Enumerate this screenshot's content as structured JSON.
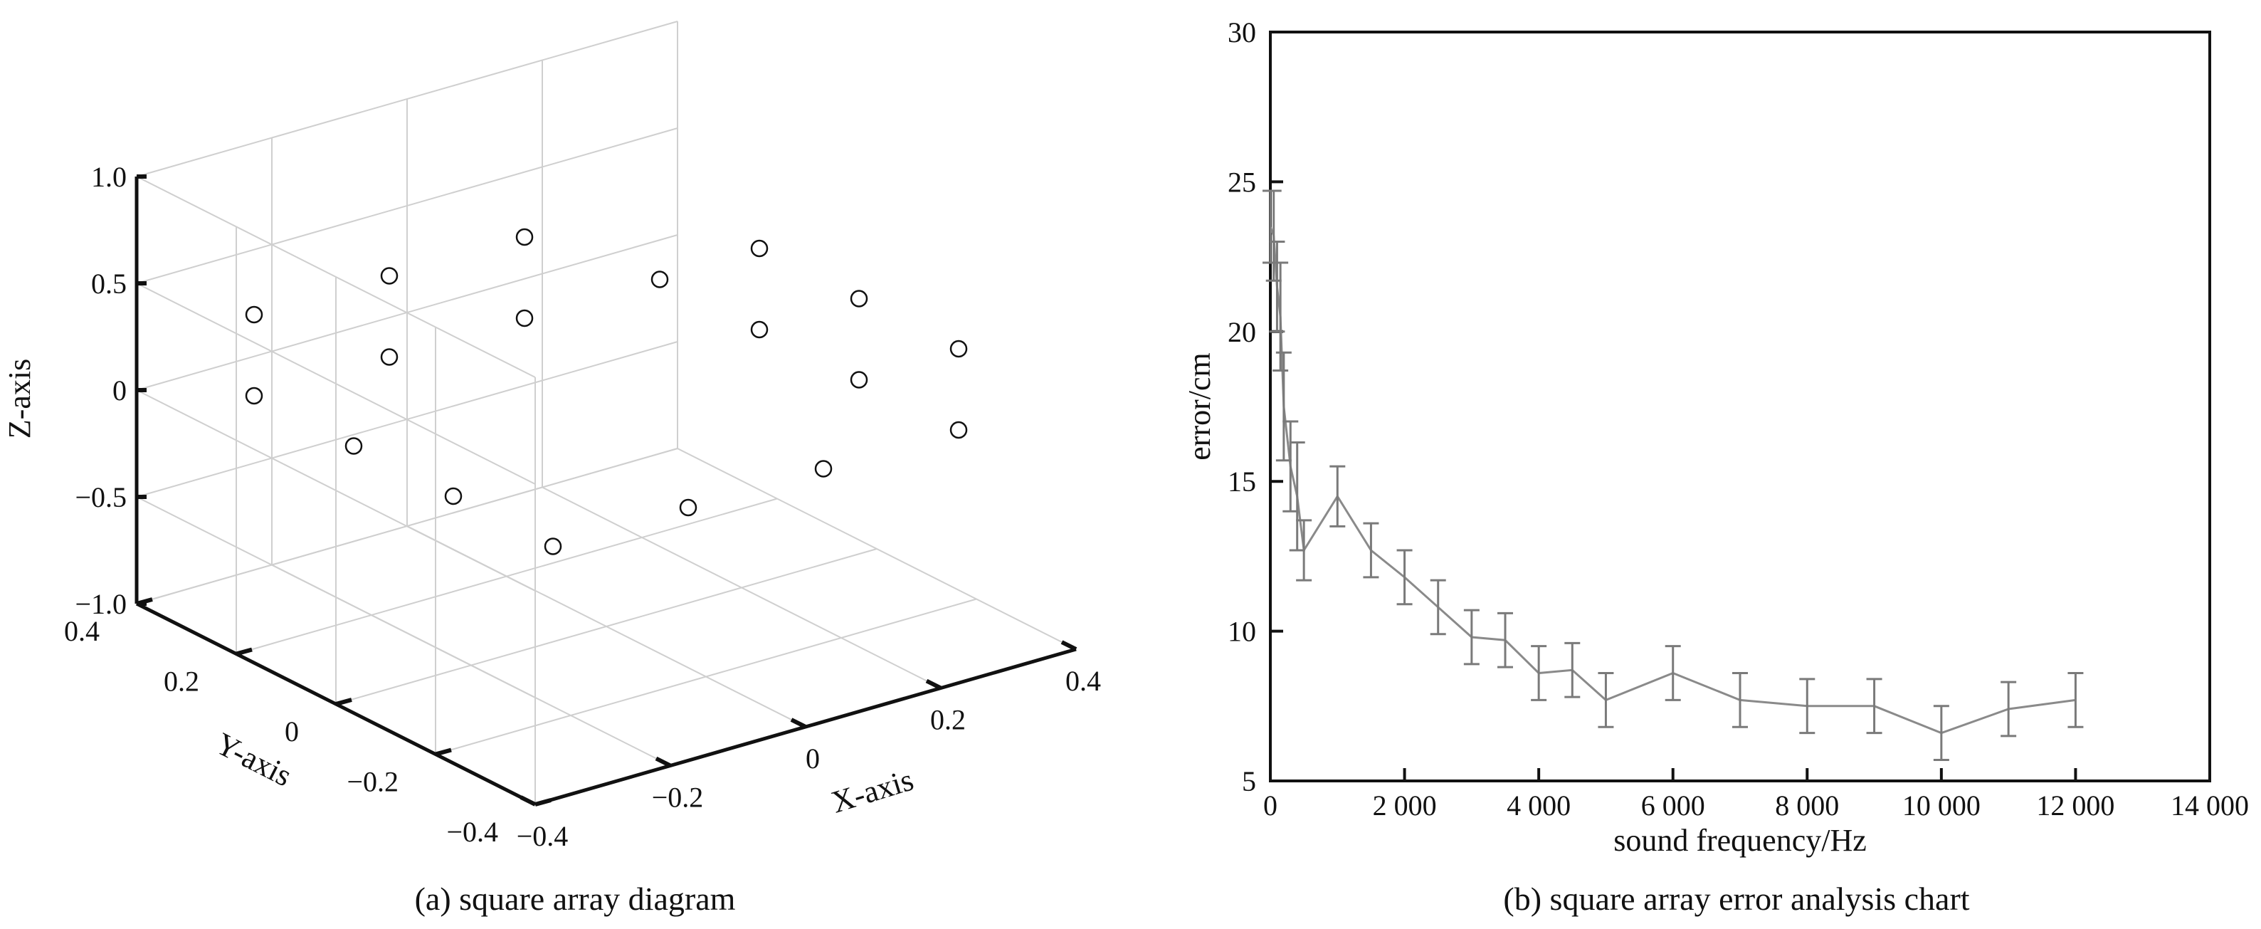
{
  "chart_data": [
    {
      "type": "scatter",
      "subtype": "3d",
      "caption": "(a) square array diagram",
      "xlabel": "X-axis",
      "ylabel": "Y-axis",
      "zlabel": "Z-axis",
      "xlim": [
        -0.4,
        0.4
      ],
      "ylim": [
        -0.4,
        0.4
      ],
      "zlim": [
        -1.0,
        1.0
      ],
      "xticks": [
        "−0.4",
        "−0.2",
        "0",
        "0.2",
        "0.4"
      ],
      "yticks": [
        "−0.4",
        "−0.2",
        "0",
        "0.2",
        "0.4"
      ],
      "zticks": [
        "−1.0",
        "−0.5",
        "0",
        "0.5",
        "1.0"
      ],
      "grid": true,
      "marker": "open-circle",
      "points": [
        {
          "x": 0.3,
          "y": -0.3,
          "z": 0
        },
        {
          "x": 0.3,
          "y": -0.1,
          "z": 0
        },
        {
          "x": 0.3,
          "y": 0.1,
          "z": 0
        },
        {
          "x": 0.3,
          "y": 0.3,
          "z": 0
        },
        {
          "x": 0.1,
          "y": 0.3,
          "z": 0
        },
        {
          "x": -0.1,
          "y": 0.3,
          "z": 0
        },
        {
          "x": -0.3,
          "y": 0.3,
          "z": 0
        },
        {
          "x": -0.3,
          "y": 0.1,
          "z": 0
        },
        {
          "x": -0.3,
          "y": -0.1,
          "z": 0
        },
        {
          "x": -0.3,
          "y": -0.3,
          "z": 0
        },
        {
          "x": -0.1,
          "y": -0.3,
          "z": 0
        },
        {
          "x": 0.1,
          "y": -0.3,
          "z": 0
        },
        {
          "x": 0.3,
          "y": -0.3,
          "z": 0.38
        },
        {
          "x": 0.3,
          "y": -0.1,
          "z": 0.38
        },
        {
          "x": 0.3,
          "y": 0.1,
          "z": 0.38
        },
        {
          "x": 0.1,
          "y": 0.3,
          "z": 0.38
        },
        {
          "x": -0.1,
          "y": 0.3,
          "z": 0.38
        },
        {
          "x": -0.3,
          "y": 0.3,
          "z": 0.38
        }
      ]
    },
    {
      "type": "line",
      "caption": "(b) square array error analysis chart",
      "xlabel": "sound frequency/Hz",
      "ylabel": "error/cm",
      "xlim": [
        0,
        14000
      ],
      "ylim": [
        5,
        30
      ],
      "xticks": [
        "0",
        "2 000",
        "4 000",
        "6 000",
        "8 000",
        "10 000",
        "12 000",
        "14 000"
      ],
      "yticks": [
        "5",
        "10",
        "15",
        "20",
        "25",
        "30"
      ],
      "error_bars": true,
      "series": [
        {
          "color": "#8a8a8a",
          "x": [
            0,
            50,
            100,
            150,
            200,
            300,
            400,
            500,
            1000,
            1500,
            2000,
            2500,
            3000,
            3500,
            4000,
            4500,
            5000,
            6000,
            7000,
            8000,
            9000,
            10000,
            11000,
            12000
          ],
          "y": [
            23.5,
            23.2,
            21.5,
            20.5,
            17.5,
            15.5,
            14.5,
            12.7,
            14.5,
            12.7,
            11.8,
            10.8,
            9.8,
            9.7,
            8.6,
            8.7,
            7.7,
            8.6,
            7.7,
            7.5,
            7.5,
            6.6,
            7.4,
            7.7
          ],
          "err": [
            1.2,
            1.5,
            1.5,
            1.8,
            1.8,
            1.5,
            1.8,
            1.0,
            1.0,
            0.9,
            0.9,
            0.9,
            0.9,
            0.9,
            0.9,
            0.9,
            0.9,
            0.9,
            0.9,
            0.9,
            0.9,
            0.9,
            0.9,
            0.9
          ]
        }
      ]
    }
  ]
}
